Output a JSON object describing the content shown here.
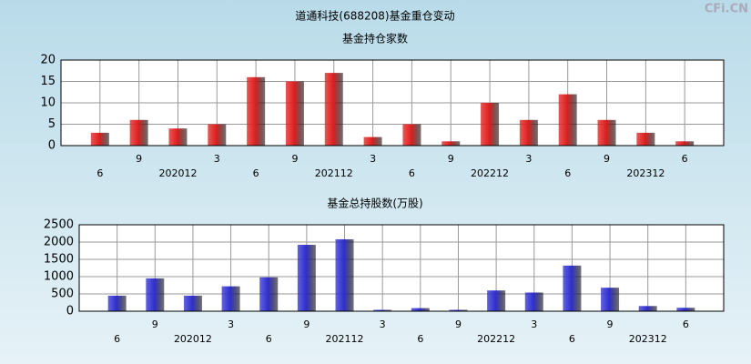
{
  "watermark": "CFi.CN",
  "chart_data": [
    {
      "type": "bar",
      "title": "道通科技(688208)基金重仓变动",
      "subtitle": "基金持仓家数",
      "categories": [
        "6",
        "9",
        "202012",
        "3",
        "6",
        "9",
        "202112",
        "3",
        "6",
        "9",
        "202212",
        "3",
        "6",
        "9",
        "202312",
        "6"
      ],
      "values": [
        3,
        6,
        4,
        5,
        16,
        15,
        17,
        2,
        5,
        1,
        10,
        6,
        12,
        6,
        3,
        1
      ],
      "color": "#e02020",
      "ylim": [
        0,
        20
      ],
      "yticks": [
        0,
        5,
        10,
        15,
        20
      ],
      "grid": true
    },
    {
      "type": "bar",
      "subtitle": "基金总持股数(万股)",
      "categories": [
        "6",
        "9",
        "202012",
        "3",
        "6",
        "9",
        "202112",
        "3",
        "6",
        "9",
        "202212",
        "3",
        "6",
        "9",
        "202312",
        "6"
      ],
      "values": [
        450,
        950,
        450,
        720,
        980,
        1920,
        2080,
        40,
        90,
        40,
        600,
        540,
        1320,
        680,
        150,
        100
      ],
      "color": "#3030d0",
      "ylim": [
        0,
        2500
      ],
      "yticks": [
        0,
        500,
        1000,
        1500,
        2000,
        2500
      ],
      "grid": true
    }
  ]
}
